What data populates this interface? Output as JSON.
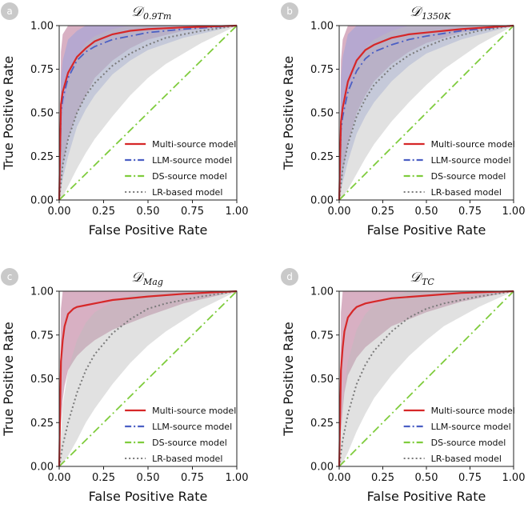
{
  "chart_data": [
    {
      "type": "line",
      "panel_label": "a",
      "title_main": "𝒟",
      "title_sub": "0.9Tm",
      "xlabel": "False Positive Rate",
      "ylabel": "True Positive Rate",
      "xlim": [
        0,
        1
      ],
      "ylim": [
        0,
        1
      ],
      "xticks": [
        "0.00",
        "0.25",
        "0.50",
        "0.75",
        "1.00"
      ],
      "yticks": [
        "0.00",
        "0.25",
        "0.50",
        "0.75",
        "1.00"
      ],
      "legend_position": "lower-right",
      "series": [
        {
          "name": "Multi-source model",
          "color": "#d62728",
          "dash": "solid",
          "x": [
            0,
            0.01,
            0.02,
            0.05,
            0.1,
            0.15,
            0.2,
            0.3,
            0.4,
            0.5,
            0.7,
            1.0
          ],
          "y": [
            0,
            0.55,
            0.62,
            0.73,
            0.82,
            0.87,
            0.91,
            0.95,
            0.97,
            0.98,
            0.99,
            1.0
          ],
          "band_low": [
            0,
            0.1,
            0.2,
            0.35,
            0.5,
            0.6,
            0.7,
            0.8,
            0.87,
            0.92,
            0.97,
            1.0
          ],
          "band_high": [
            0,
            0.85,
            0.95,
            1.0,
            1.0,
            1.0,
            1.0,
            1.0,
            1.0,
            1.0,
            1.0,
            1.0
          ],
          "band_color": "#a8507a"
        },
        {
          "name": "LLM-source model",
          "color": "#4b5fc4",
          "dash": "dashdot",
          "x": [
            0,
            0.01,
            0.02,
            0.05,
            0.1,
            0.15,
            0.2,
            0.3,
            0.4,
            0.5,
            0.7,
            1.0
          ],
          "y": [
            0,
            0.5,
            0.58,
            0.7,
            0.8,
            0.85,
            0.88,
            0.92,
            0.94,
            0.96,
            0.98,
            1.0
          ],
          "band_low": [
            0,
            0.05,
            0.12,
            0.25,
            0.42,
            0.52,
            0.6,
            0.72,
            0.8,
            0.86,
            0.93,
            1.0
          ],
          "band_high": [
            0,
            0.7,
            0.8,
            0.92,
            0.97,
            1.0,
            1.0,
            1.0,
            1.0,
            1.0,
            1.0,
            1.0
          ],
          "band_color": "#8f9fe0"
        },
        {
          "name": "DS-source model",
          "color": "#7fcc3d",
          "dash": "dashdot",
          "x": [
            0,
            1
          ],
          "y": [
            0,
            1
          ]
        },
        {
          "name": "LR-based model",
          "color": "#7a7a7a",
          "dash": "dotted",
          "x": [
            0,
            0.02,
            0.05,
            0.1,
            0.15,
            0.2,
            0.3,
            0.4,
            0.5,
            0.6,
            0.8,
            1.0
          ],
          "y": [
            0,
            0.2,
            0.35,
            0.5,
            0.6,
            0.67,
            0.77,
            0.84,
            0.89,
            0.93,
            0.97,
            1.0
          ],
          "band_low": [
            0,
            0.02,
            0.08,
            0.18,
            0.27,
            0.35,
            0.48,
            0.6,
            0.7,
            0.78,
            0.9,
            1.0
          ],
          "band_high": [
            0,
            0.5,
            0.68,
            0.82,
            0.9,
            0.94,
            0.98,
            1.0,
            1.0,
            1.0,
            1.0,
            1.0
          ],
          "band_color": "#bdbdbd"
        }
      ]
    },
    {
      "type": "line",
      "panel_label": "b",
      "title_main": "𝒟",
      "title_sub": "1350K",
      "xlabel": "False Positive Rate",
      "ylabel": "True Positive Rate",
      "xlim": [
        0,
        1
      ],
      "ylim": [
        0,
        1
      ],
      "xticks": [
        "0.00",
        "0.25",
        "0.50",
        "0.75",
        "1.00"
      ],
      "yticks": [
        "0.00",
        "0.25",
        "0.50",
        "0.75",
        "1.00"
      ],
      "legend_position": "lower-right",
      "series": [
        {
          "name": "Multi-source model",
          "color": "#d62728",
          "dash": "solid",
          "x": [
            0,
            0.01,
            0.02,
            0.05,
            0.1,
            0.15,
            0.2,
            0.3,
            0.4,
            0.5,
            0.7,
            1.0
          ],
          "y": [
            0,
            0.45,
            0.53,
            0.68,
            0.8,
            0.86,
            0.89,
            0.93,
            0.95,
            0.96,
            0.98,
            1.0
          ],
          "band_low": [
            0,
            0.08,
            0.16,
            0.32,
            0.5,
            0.6,
            0.68,
            0.78,
            0.85,
            0.9,
            0.96,
            1.0
          ],
          "band_high": [
            0,
            0.8,
            0.92,
            1.0,
            1.0,
            1.0,
            1.0,
            1.0,
            1.0,
            1.0,
            1.0,
            1.0
          ],
          "band_color": "#a8507a"
        },
        {
          "name": "LLM-source model",
          "color": "#4b5fc4",
          "dash": "dashdot",
          "x": [
            0,
            0.01,
            0.02,
            0.05,
            0.1,
            0.15,
            0.2,
            0.3,
            0.4,
            0.5,
            0.7,
            1.0
          ],
          "y": [
            0,
            0.4,
            0.48,
            0.62,
            0.74,
            0.81,
            0.85,
            0.89,
            0.92,
            0.94,
            0.97,
            1.0
          ],
          "band_low": [
            0,
            0.05,
            0.1,
            0.22,
            0.38,
            0.48,
            0.56,
            0.68,
            0.77,
            0.84,
            0.92,
            1.0
          ],
          "band_high": [
            0,
            0.7,
            0.82,
            0.95,
            1.0,
            1.0,
            1.0,
            1.0,
            1.0,
            1.0,
            1.0,
            1.0
          ],
          "band_color": "#8f9fe0"
        },
        {
          "name": "DS-source model",
          "color": "#7fcc3d",
          "dash": "dashdot",
          "x": [
            0,
            1
          ],
          "y": [
            0,
            1
          ]
        },
        {
          "name": "LR-based model",
          "color": "#7a7a7a",
          "dash": "dotted",
          "x": [
            0,
            0.02,
            0.05,
            0.1,
            0.15,
            0.2,
            0.3,
            0.4,
            0.5,
            0.6,
            0.8,
            1.0
          ],
          "y": [
            0,
            0.18,
            0.32,
            0.48,
            0.58,
            0.66,
            0.76,
            0.83,
            0.88,
            0.92,
            0.97,
            1.0
          ],
          "band_low": [
            0,
            0.02,
            0.06,
            0.15,
            0.24,
            0.32,
            0.45,
            0.56,
            0.66,
            0.75,
            0.89,
            1.0
          ],
          "band_high": [
            0,
            0.45,
            0.62,
            0.78,
            0.87,
            0.92,
            0.97,
            1.0,
            1.0,
            1.0,
            1.0,
            1.0
          ],
          "band_color": "#bdbdbd"
        }
      ]
    },
    {
      "type": "line",
      "panel_label": "c",
      "title_main": "𝒟",
      "title_sub": "Mag",
      "xlabel": "False Positive Rate",
      "ylabel": "True Positive Rate",
      "xlim": [
        0,
        1
      ],
      "ylim": [
        0,
        1
      ],
      "xticks": [
        "0.00",
        "0.25",
        "0.50",
        "0.75",
        "1.00"
      ],
      "yticks": [
        "0.00",
        "0.25",
        "0.50",
        "0.75",
        "1.00"
      ],
      "legend_position": "lower-right",
      "series": [
        {
          "name": "Multi-source model",
          "color": "#d62728",
          "dash": "solid",
          "x": [
            0,
            0.01,
            0.02,
            0.03,
            0.05,
            0.08,
            0.1,
            0.15,
            0.2,
            0.3,
            0.5,
            0.7,
            1.0
          ],
          "y": [
            0,
            0.6,
            0.72,
            0.8,
            0.87,
            0.9,
            0.91,
            0.92,
            0.93,
            0.95,
            0.97,
            0.985,
            1.0
          ],
          "band_low": [
            0,
            0.25,
            0.38,
            0.46,
            0.55,
            0.6,
            0.63,
            0.68,
            0.72,
            0.78,
            0.86,
            0.93,
            1.0
          ],
          "band_high": [
            0,
            0.9,
            1.0,
            1.0,
            1.0,
            1.0,
            1.0,
            1.0,
            1.0,
            1.0,
            1.0,
            1.0,
            1.0
          ],
          "band_color": "#a8507a"
        },
        {
          "name": "LLM-source model",
          "color": "#4b5fc4",
          "dash": "dashdot",
          "x": [],
          "y": []
        },
        {
          "name": "DS-source model",
          "color": "#7fcc3d",
          "dash": "dashdot",
          "x": [
            0,
            1
          ],
          "y": [
            0,
            1
          ]
        },
        {
          "name": "LR-based model",
          "color": "#7a7a7a",
          "dash": "dotted",
          "x": [
            0,
            0.02,
            0.05,
            0.1,
            0.15,
            0.2,
            0.3,
            0.4,
            0.5,
            0.6,
            0.8,
            1.0
          ],
          "y": [
            0,
            0.12,
            0.25,
            0.42,
            0.55,
            0.64,
            0.76,
            0.84,
            0.9,
            0.93,
            0.97,
            1.0
          ],
          "band_low": [
            0,
            0.02,
            0.06,
            0.15,
            0.25,
            0.33,
            0.47,
            0.59,
            0.69,
            0.77,
            0.9,
            1.0
          ],
          "band_high": [
            0,
            0.35,
            0.55,
            0.72,
            0.82,
            0.88,
            0.94,
            0.98,
            1.0,
            1.0,
            1.0,
            1.0
          ],
          "band_color": "#bdbdbd"
        }
      ]
    },
    {
      "type": "line",
      "panel_label": "d",
      "title_main": "𝒟",
      "title_sub": "TC",
      "xlabel": "False Positive Rate",
      "ylabel": "True Positive Rate",
      "xlim": [
        0,
        1
      ],
      "ylim": [
        0,
        1
      ],
      "xticks": [
        "0.00",
        "0.25",
        "0.50",
        "0.75",
        "1.00"
      ],
      "yticks": [
        "0.00",
        "0.25",
        "0.50",
        "0.75",
        "1.00"
      ],
      "legend_position": "lower-right",
      "series": [
        {
          "name": "Multi-source model",
          "color": "#d62728",
          "dash": "solid",
          "x": [
            0,
            0.01,
            0.02,
            0.03,
            0.05,
            0.08,
            0.1,
            0.15,
            0.2,
            0.3,
            0.5,
            0.7,
            1.0
          ],
          "y": [
            0,
            0.55,
            0.68,
            0.77,
            0.85,
            0.89,
            0.91,
            0.93,
            0.94,
            0.96,
            0.975,
            0.99,
            1.0
          ],
          "band_low": [
            0,
            0.2,
            0.32,
            0.42,
            0.52,
            0.58,
            0.62,
            0.68,
            0.72,
            0.8,
            0.88,
            0.94,
            1.0
          ],
          "band_high": [
            0,
            0.88,
            1.0,
            1.0,
            1.0,
            1.0,
            1.0,
            1.0,
            1.0,
            1.0,
            1.0,
            1.0,
            1.0
          ],
          "band_color": "#a8507a"
        },
        {
          "name": "LLM-source model",
          "color": "#4b5fc4",
          "dash": "dashdot",
          "x": [],
          "y": []
        },
        {
          "name": "DS-source model",
          "color": "#7fcc3d",
          "dash": "dashdot",
          "x": [
            0,
            1
          ],
          "y": [
            0,
            1
          ]
        },
        {
          "name": "LR-based model",
          "color": "#7a7a7a",
          "dash": "dotted",
          "x": [
            0,
            0.02,
            0.05,
            0.1,
            0.15,
            0.2,
            0.3,
            0.4,
            0.5,
            0.6,
            0.8,
            1.0
          ],
          "y": [
            0,
            0.15,
            0.3,
            0.47,
            0.58,
            0.66,
            0.77,
            0.85,
            0.9,
            0.93,
            0.97,
            1.0
          ],
          "band_low": [
            0,
            0.02,
            0.08,
            0.2,
            0.3,
            0.39,
            0.52,
            0.63,
            0.72,
            0.8,
            0.91,
            1.0
          ],
          "band_high": [
            0,
            0.38,
            0.6,
            0.78,
            0.87,
            0.92,
            0.97,
            1.0,
            1.0,
            1.0,
            1.0,
            1.0
          ],
          "band_color": "#bdbdbd"
        }
      ]
    }
  ]
}
